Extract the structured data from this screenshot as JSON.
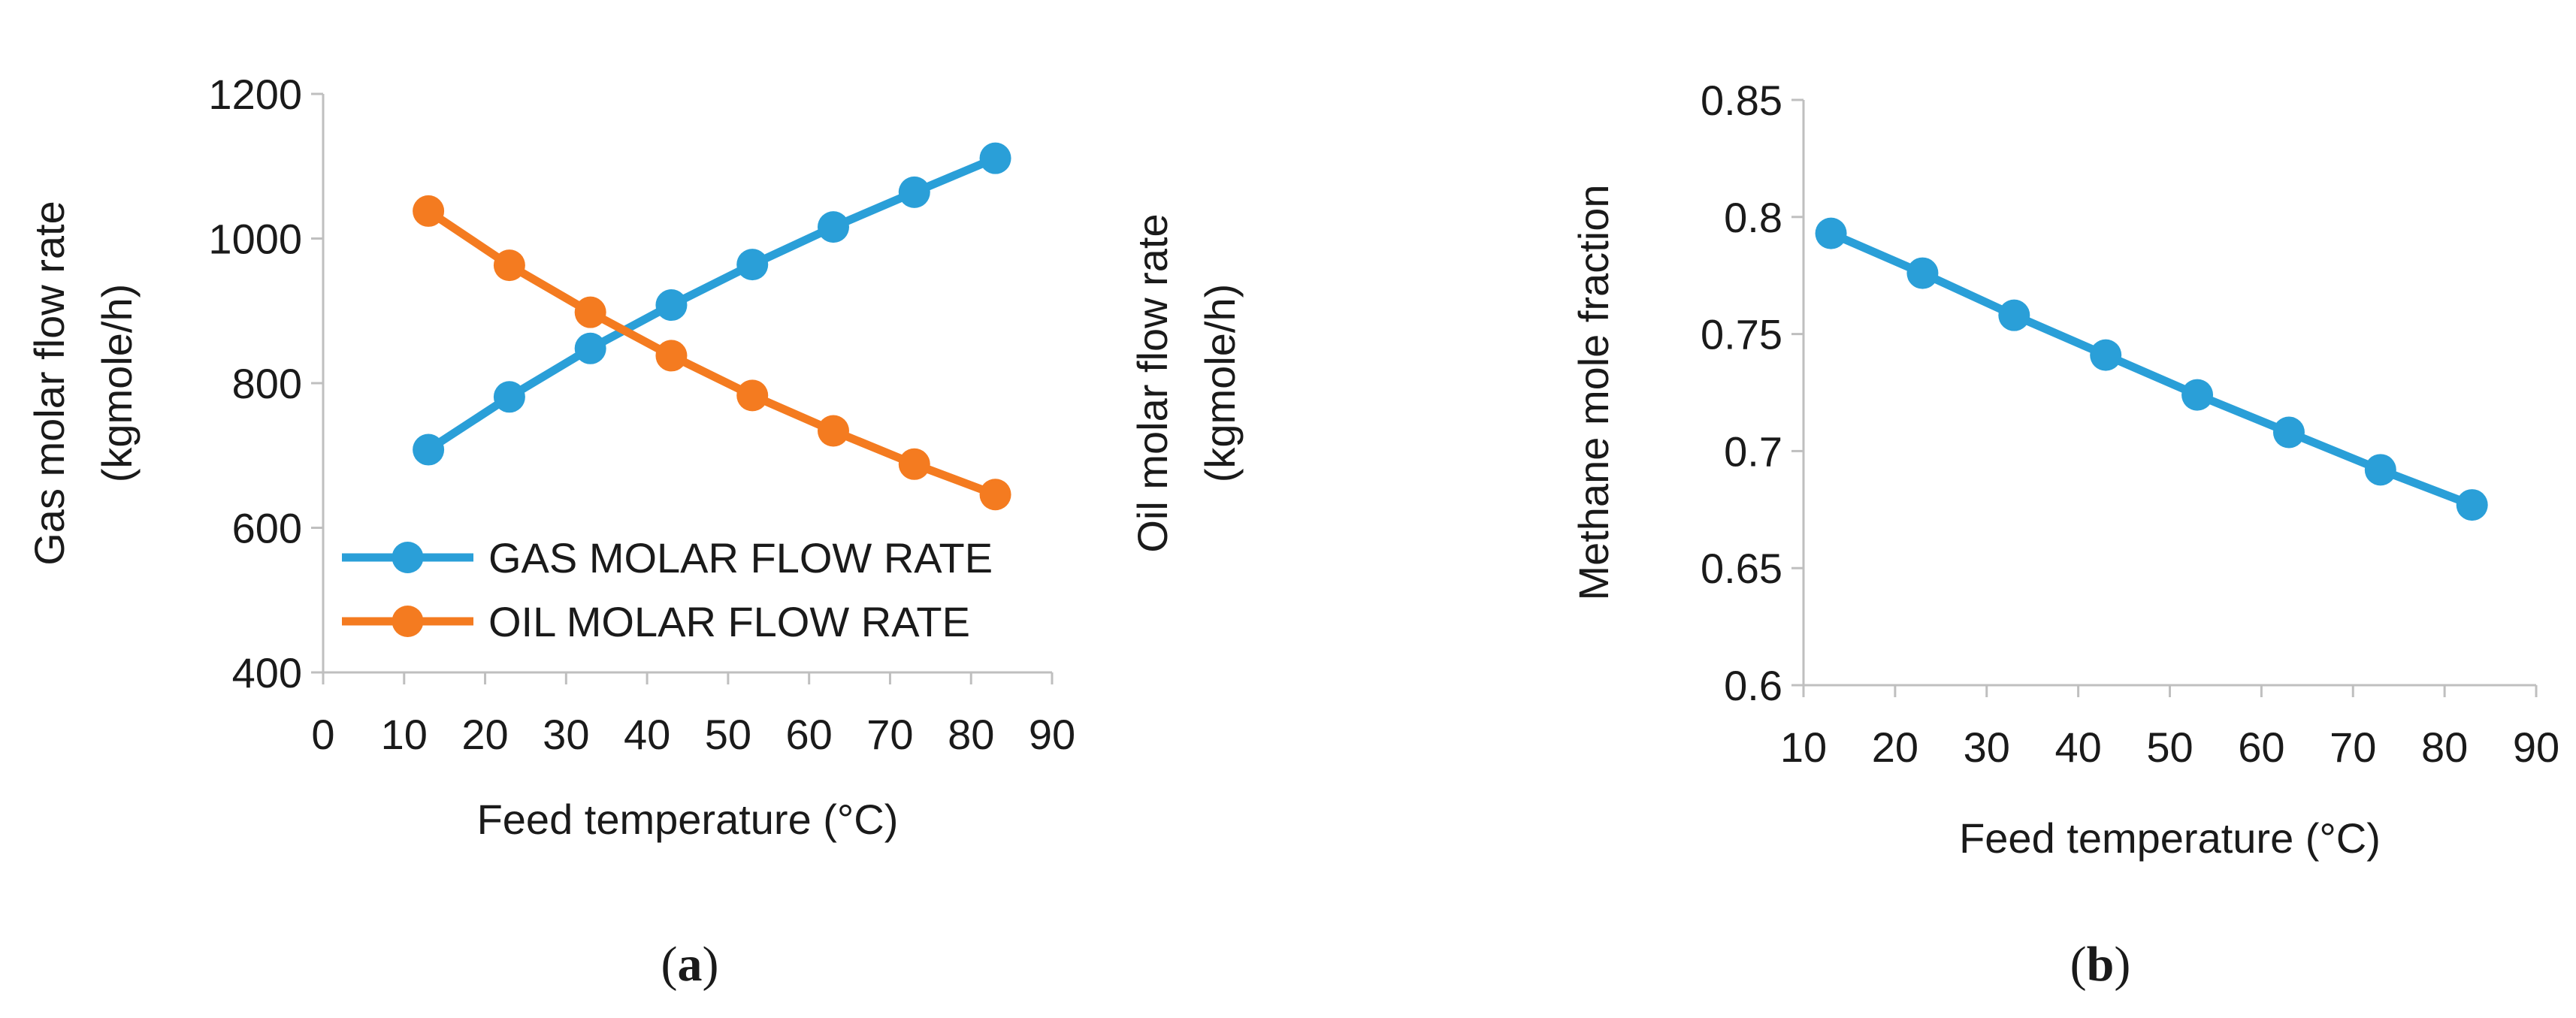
{
  "chart_data": [
    {
      "type": "line",
      "panel_label": {
        "open": "(",
        "letter": "a",
        "close": ")"
      },
      "xlabel": "Feed temperature (°C)",
      "ylabel": [
        "Gas molar flow rate",
        "(kgmole/h)"
      ],
      "ylabel_right": [
        "Oil molar flow rate",
        "(kgmole/h)"
      ],
      "xlim": [
        0,
        90
      ],
      "ylim": [
        400,
        1200
      ],
      "x_ticks": [
        0,
        10,
        20,
        30,
        40,
        50,
        60,
        70,
        80,
        90
      ],
      "y_ticks": [
        400,
        600,
        800,
        1000,
        1200
      ],
      "grid": false,
      "legend_position": "bottom-left",
      "x": [
        13,
        23,
        33,
        43,
        53,
        63,
        73,
        83
      ],
      "series": [
        {
          "name": "GAS MOLAR FLOW RATE",
          "color": "#2a9fd8",
          "values": [
            708,
            781,
            848,
            908,
            964,
            1016,
            1064,
            1111
          ]
        },
        {
          "name": "OIL MOLAR FLOW RATE",
          "color": "#f47b20",
          "values": [
            1038,
            963,
            898,
            838,
            783,
            734,
            688,
            646
          ]
        }
      ]
    },
    {
      "type": "line",
      "panel_label": {
        "open": "(",
        "letter": "b",
        "close": ")"
      },
      "xlabel": "Feed temperature (°C)",
      "ylabel": [
        "Methane mole fraction"
      ],
      "xlim": [
        10,
        90
      ],
      "ylim": [
        0.6,
        0.85
      ],
      "x_ticks": [
        10,
        20,
        30,
        40,
        50,
        60,
        70,
        80,
        90
      ],
      "y_ticks": [
        0.6,
        0.65,
        0.7,
        0.75,
        0.8,
        0.85
      ],
      "y_tick_labels": [
        "0.6",
        "0.65",
        "0.7",
        "0.75",
        "0.8",
        "0.85"
      ],
      "grid": false,
      "x": [
        13,
        23,
        33,
        43,
        53,
        63,
        73,
        83
      ],
      "series": [
        {
          "color": "#2a9fd8",
          "values": [
            0.793,
            0.776,
            0.758,
            0.741,
            0.724,
            0.708,
            0.692,
            0.677
          ]
        }
      ]
    }
  ]
}
